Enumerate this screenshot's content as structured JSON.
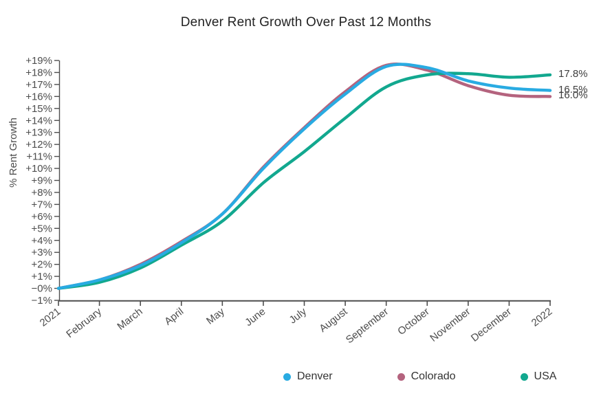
{
  "chart_data": {
    "type": "line",
    "title": "Denver Rent Growth Over Past 12 Months",
    "xlabel": "",
    "ylabel": "% Rent Growth",
    "x_categories": [
      "2021",
      "February",
      "March",
      "April",
      "May",
      "June",
      "July",
      "August",
      "September",
      "October",
      "November",
      "December",
      "2022"
    ],
    "ylim": [
      -1,
      19
    ],
    "grid": false,
    "legend_position": "bottom-right",
    "axis_color": "#4d4d4d",
    "tick_text_color": "#4d4d4d",
    "y_ticks": [
      {
        "value": 19,
        "label": "+19%"
      },
      {
        "value": 18,
        "label": "+18%"
      },
      {
        "value": 17,
        "label": "+17%"
      },
      {
        "value": 16,
        "label": "+16%"
      },
      {
        "value": 15,
        "label": "+15%"
      },
      {
        "value": 14,
        "label": "+14%"
      },
      {
        "value": 13,
        "label": "+13%"
      },
      {
        "value": 12,
        "label": "+12%"
      },
      {
        "value": 11,
        "label": "+11%"
      },
      {
        "value": 10,
        "label": "+10%"
      },
      {
        "value": 9,
        "label": "+9%"
      },
      {
        "value": 8,
        "label": "+8%"
      },
      {
        "value": 7,
        "label": "+7%"
      },
      {
        "value": 6,
        "label": "+6%"
      },
      {
        "value": 5,
        "label": "+5%"
      },
      {
        "value": 4,
        "label": "+4%"
      },
      {
        "value": 3,
        "label": "+3%"
      },
      {
        "value": 2,
        "label": "+2%"
      },
      {
        "value": 1,
        "label": "+1%"
      },
      {
        "value": 0,
        "label": "−0%"
      },
      {
        "value": -1,
        "label": "−1%"
      }
    ],
    "series": [
      {
        "name": "Denver",
        "color": "#29abe2",
        "z": 3,
        "values": [
          0.0,
          0.7,
          1.9,
          3.8,
          6.2,
          10.0,
          13.3,
          16.2,
          18.5,
          18.4,
          17.3,
          16.7,
          16.5
        ],
        "end_label": "16.5%"
      },
      {
        "name": "Colorado",
        "color": "#b4637e",
        "z": 1,
        "values": [
          0.0,
          0.7,
          2.0,
          3.9,
          6.2,
          10.1,
          13.4,
          16.4,
          18.6,
          18.2,
          16.9,
          16.1,
          16.0
        ],
        "end_label": "16.0%"
      },
      {
        "name": "USA",
        "color": "#12a88f",
        "z": 2,
        "values": [
          0.0,
          0.5,
          1.7,
          3.6,
          5.6,
          8.8,
          11.4,
          14.2,
          16.8,
          17.8,
          17.9,
          17.6,
          17.8
        ],
        "end_label": "17.8%"
      }
    ]
  }
}
